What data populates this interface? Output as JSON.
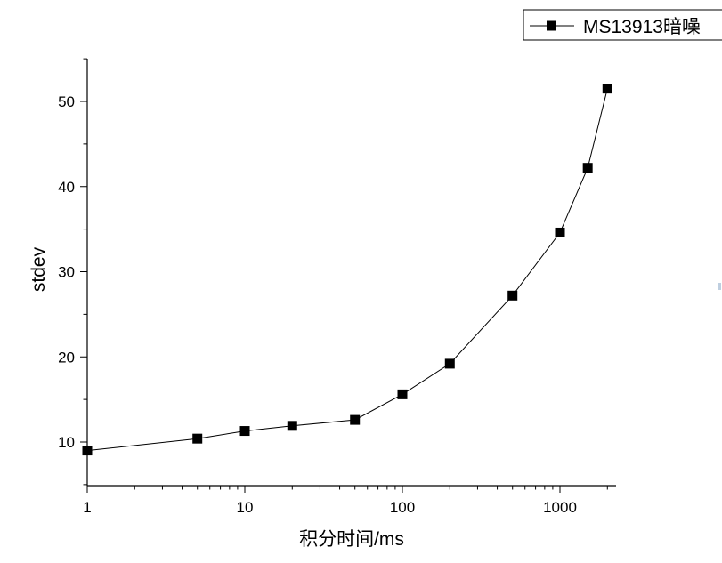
{
  "chart_data": {
    "type": "line",
    "xscale": "log",
    "xlabel": "积分时间/ms",
    "ylabel": "stdev",
    "xlim": [
      1,
      2200
    ],
    "ylim": [
      5,
      55
    ],
    "xticks": [
      1,
      10,
      100,
      1000
    ],
    "xtick_labels": [
      "1",
      "10",
      "100",
      "1000"
    ],
    "yticks": [
      10,
      20,
      30,
      40,
      50
    ],
    "ytick_labels": [
      "10",
      "20",
      "30",
      "40",
      "50"
    ],
    "grid": false,
    "legend_position": "top-right",
    "series": [
      {
        "name": "MS13913暗噪",
        "marker": "square",
        "color": "#000000",
        "x": [
          1,
          5,
          10,
          20,
          50,
          100,
          200,
          500,
          1000,
          1500,
          2000
        ],
        "y": [
          9.0,
          10.4,
          11.3,
          11.9,
          12.6,
          15.6,
          19.2,
          27.2,
          34.6,
          42.2,
          51.5
        ]
      }
    ]
  }
}
